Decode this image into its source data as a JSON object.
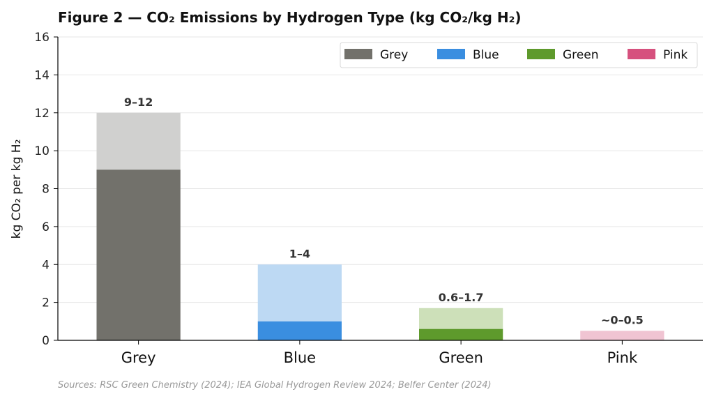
{
  "chart_data": {
    "type": "bar",
    "title": "Figure 2 — CO₂ Emissions by Hydrogen Type (kg CO₂/kg H₂)",
    "ylabel": "kg CO₂ per kg H₂",
    "xlabel": "",
    "ylim": [
      0,
      16
    ],
    "yticks": [
      "0",
      "2",
      "4",
      "6",
      "8",
      "10",
      "12",
      "14",
      "16"
    ],
    "grid": true,
    "legend_position": "top-right",
    "categories": [
      "Grey",
      "Blue",
      "Green",
      "Pink"
    ],
    "series": [
      {
        "name": "Grey",
        "low": 9,
        "high": 12,
        "label": "9–12",
        "color": "#72716b",
        "light_color": "#d0d0cf"
      },
      {
        "name": "Blue",
        "low": 1,
        "high": 4,
        "label": "1–4",
        "color": "#3a8ee0",
        "light_color": "#bdd9f3"
      },
      {
        "name": "Green",
        "low": 0.6,
        "high": 1.7,
        "label": "0.6–1.7",
        "color": "#5e9a2c",
        "light_color": "#cde0b9"
      },
      {
        "name": "Pink",
        "low": 0,
        "high": 0.5,
        "label": "~0–0.5",
        "color": "#d6517e",
        "light_color": "#f0c4d2"
      }
    ],
    "source": "Sources: RSC Green Chemistry (2024); IEA Global Hydrogen Review 2024; Belfer Center (2024)"
  }
}
